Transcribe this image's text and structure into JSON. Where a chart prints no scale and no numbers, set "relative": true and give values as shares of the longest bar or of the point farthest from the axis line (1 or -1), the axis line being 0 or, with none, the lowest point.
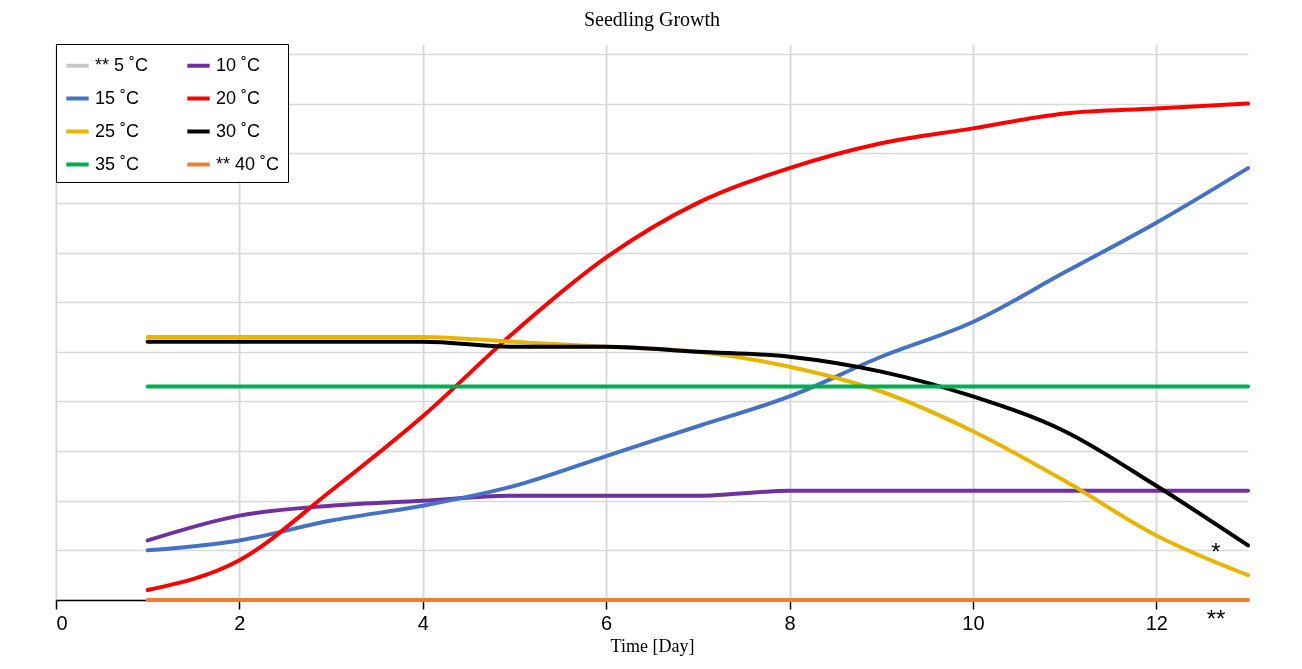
{
  "chart_data": {
    "type": "line",
    "title": "Seedling Growth",
    "xlabel": "Time [Day]",
    "relative": true,
    "x": [
      1,
      2,
      3,
      4,
      5,
      6,
      7,
      8,
      9,
      10,
      11,
      12,
      13
    ],
    "xlim": [
      0,
      13
    ],
    "xticks": [
      0,
      2,
      4,
      6,
      8,
      10,
      12
    ],
    "grid": true,
    "legend": "top left",
    "line_style": "solid",
    "marker": "none",
    "series": [
      {
        "name": "** 5 ˚C",
        "color": "#c8c8c8",
        "values": [
          null,
          null,
          null,
          null,
          null,
          null,
          null,
          null,
          null,
          null,
          null,
          null,
          null
        ]
      },
      {
        "name": "10 ˚C",
        "color": "#7030a0",
        "values": [
          0.12,
          0.17,
          0.19,
          0.2,
          0.21,
          0.21,
          0.21,
          0.22,
          0.22,
          0.22,
          0.22,
          0.22,
          0.22
        ]
      },
      {
        "name": "15 ˚C",
        "color": "#4472c4",
        "values": [
          0.1,
          0.12,
          0.16,
          0.19,
          0.23,
          0.29,
          0.35,
          0.41,
          0.49,
          0.56,
          0.66,
          0.76,
          0.87
        ]
      },
      {
        "name": "20 ˚C",
        "color": "#ff0000",
        "values": [
          0.02,
          0.08,
          0.22,
          0.37,
          0.54,
          0.69,
          0.8,
          0.87,
          0.92,
          0.95,
          0.98,
          0.99,
          1.0
        ]
      },
      {
        "name": "25 ˚C",
        "color": "#e9b500",
        "values": [
          0.53,
          0.53,
          0.53,
          0.53,
          0.52,
          0.51,
          0.5,
          0.47,
          0.42,
          0.34,
          0.24,
          0.13,
          0.05
        ]
      },
      {
        "name": "30 ˚C",
        "color": "#000000",
        "values": [
          0.52,
          0.52,
          0.52,
          0.52,
          0.51,
          0.51,
          0.5,
          0.49,
          0.46,
          0.41,
          0.34,
          0.23,
          0.11
        ]
      },
      {
        "name": "35 ˚C",
        "color": "#00b050",
        "values": [
          0.43,
          0.43,
          0.43,
          0.43,
          0.43,
          0.43,
          0.43,
          0.43,
          0.43,
          0.43,
          0.43,
          0.43,
          0.43
        ]
      },
      {
        "name": "** 40 ˚C",
        "color": "#ed7d31",
        "values": [
          0,
          0,
          0,
          0,
          0,
          0,
          0,
          0,
          0,
          0,
          0,
          0,
          0
        ]
      }
    ],
    "annotations": [
      {
        "text": "*",
        "x": 13,
        "y": 0.11
      },
      {
        "text": "**",
        "x": 13,
        "y": 0
      }
    ]
  }
}
